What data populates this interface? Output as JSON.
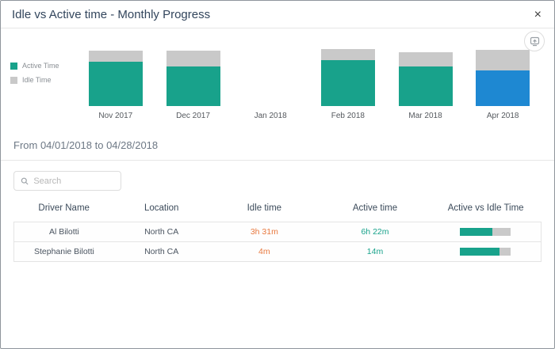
{
  "header": {
    "title": "Idle vs Active time - Monthly Progress",
    "close_label": "×"
  },
  "chart_data": {
    "type": "bar",
    "subtype": "stacked-column",
    "title": "Idle vs Active time - Monthly Progress",
    "categories": [
      "Nov 2017",
      "Dec 2017",
      "Jan 2018",
      "Feb 2018",
      "Mar 2018",
      "Apr 2018"
    ],
    "series": [
      {
        "name": "Active Time",
        "values": [
          78,
          69,
          0,
          81,
          69,
          63
        ]
      },
      {
        "name": "Idle Time",
        "values": [
          19,
          28,
          0,
          19,
          25,
          35
        ]
      }
    ],
    "value_unit": "percent-of-plot-height",
    "legend": [
      "Active Time",
      "Idle Time"
    ],
    "legend_position": "left",
    "selected_category": "Apr 2018",
    "selected_index": 5,
    "colors": {
      "active": "#18a28b",
      "idle": "#c9c9c9",
      "selected_active": "#1e88d2"
    },
    "grid": false,
    "axis_labels_shown": false
  },
  "range": {
    "label": "From 04/01/2018 to 04/28/2018"
  },
  "search": {
    "placeholder": "Search"
  },
  "table": {
    "columns": [
      "Driver Name",
      "Location",
      "Idle time",
      "Active time",
      "Active vs Idle Time"
    ],
    "rows": [
      {
        "driver": "Al Bilotti",
        "location": "North CA",
        "idle_time": "3h 31m",
        "active_time": "6h 22m",
        "active_pct": 64
      },
      {
        "driver": "Stephanie Bilotti",
        "location": "North CA",
        "idle_time": "4m",
        "active_time": "14m",
        "active_pct": 78
      }
    ]
  },
  "colors": {
    "idle_value_text": "#e8793f",
    "active_value_text": "#18a28b"
  }
}
